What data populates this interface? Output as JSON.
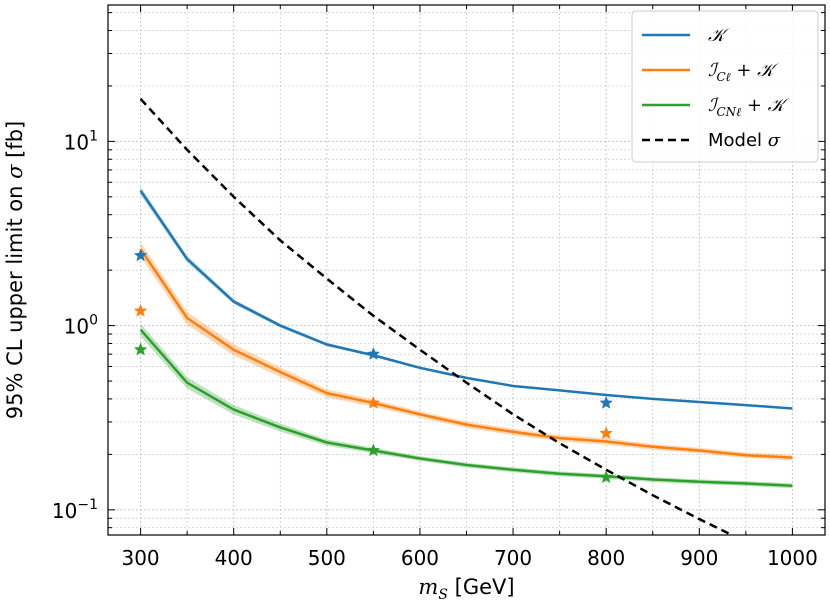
{
  "chart_data": {
    "type": "line",
    "title": "",
    "xlabel": "[GeV]",
    "xlabel_math": "m",
    "xlabel_math_sub": "S",
    "ylabel": "95% CL upper limit on",
    "ylabel_math": "σ",
    "ylabel_unit": "[fb]",
    "xlim": [
      265,
      1035
    ],
    "ylim": [
      0.073,
      55
    ],
    "yscale": "log",
    "grid": true,
    "legend_position": "top-right",
    "x_ticks": [
      300,
      400,
      500,
      600,
      700,
      800,
      900,
      1000
    ],
    "x_tick_labels": [
      "300",
      "400",
      "500",
      "600",
      "700",
      "800",
      "900",
      "1000"
    ],
    "y_ticks": [
      0.1,
      1,
      10
    ],
    "y_tick_labels": [
      {
        "base": "10",
        "exp": "−1"
      },
      {
        "base": "10",
        "exp": "0"
      },
      {
        "base": "10",
        "exp": "1"
      }
    ],
    "x": [
      300,
      350,
      400,
      450,
      500,
      550,
      600,
      650,
      700,
      750,
      800,
      850,
      900,
      950,
      1000
    ],
    "series": [
      {
        "name": "𝒦",
        "color": "#1f77b4",
        "style": "solid",
        "values": [
          5.4,
          2.3,
          1.35,
          1.0,
          0.79,
          0.69,
          0.59,
          0.52,
          0.47,
          0.445,
          0.42,
          0.4,
          0.385,
          0.37,
          0.355
        ],
        "band": [
          0.05,
          0.04,
          0.03,
          0.025,
          0.02,
          0.02,
          0.015,
          0.015,
          0.012,
          0.012,
          0.012,
          0.012,
          0.012,
          0.012,
          0.012
        ],
        "markers": [
          {
            "x": 300,
            "y": 2.4
          },
          {
            "x": 550,
            "y": 0.7
          },
          {
            "x": 800,
            "y": 0.38
          }
        ]
      },
      {
        "name": "ℐ_Cℓ + 𝒦",
        "color": "#ff7f0e",
        "style": "solid",
        "values": [
          2.6,
          1.1,
          0.74,
          0.56,
          0.43,
          0.38,
          0.33,
          0.29,
          0.265,
          0.245,
          0.235,
          0.22,
          0.21,
          0.198,
          0.192
        ],
        "band": [
          0.09,
          0.08,
          0.07,
          0.06,
          0.05,
          0.045,
          0.04,
          0.04,
          0.04,
          0.04,
          0.04,
          0.035,
          0.035,
          0.035,
          0.035
        ],
        "markers": [
          {
            "x": 300,
            "y": 1.2
          },
          {
            "x": 550,
            "y": 0.38
          },
          {
            "x": 800,
            "y": 0.26
          }
        ]
      },
      {
        "name": "ℐ_CNℓ + 𝒦",
        "color": "#2ca02c",
        "style": "solid",
        "values": [
          0.95,
          0.49,
          0.35,
          0.28,
          0.232,
          0.21,
          0.19,
          0.175,
          0.165,
          0.157,
          0.152,
          0.146,
          0.142,
          0.139,
          0.135
        ],
        "band": [
          0.08,
          0.07,
          0.06,
          0.05,
          0.04,
          0.035,
          0.03,
          0.03,
          0.03,
          0.03,
          0.03,
          0.03,
          0.03,
          0.03,
          0.03
        ],
        "markers": [
          {
            "x": 300,
            "y": 0.74
          },
          {
            "x": 550,
            "y": 0.21
          },
          {
            "x": 800,
            "y": 0.15
          }
        ]
      },
      {
        "name": "Model σ",
        "color": "#000000",
        "style": "dashed",
        "x": [
          300,
          350,
          400,
          450,
          500,
          550,
          600,
          650,
          700,
          750,
          800,
          850,
          900,
          935
        ],
        "values": [
          17.0,
          9.0,
          5.0,
          2.9,
          1.8,
          1.13,
          0.74,
          0.49,
          0.33,
          0.23,
          0.165,
          0.12,
          0.089,
          0.073
        ],
        "band": [],
        "markers": []
      }
    ],
    "legend": [
      {
        "label_math": "𝒦",
        "label_sub": "",
        "label_rest": "",
        "color": "#1f77b4",
        "style": "solid"
      },
      {
        "label_math": "ℐ",
        "label_sub": "Cℓ",
        "label_rest": " + 𝒦",
        "color": "#ff7f0e",
        "style": "solid"
      },
      {
        "label_math": "ℐ",
        "label_sub": "CNℓ",
        "label_rest": " + 𝒦",
        "color": "#2ca02c",
        "style": "solid"
      },
      {
        "label_math": "Model ",
        "label_sub": "",
        "label_rest": "σ",
        "color": "#000000",
        "style": "dashed"
      }
    ]
  }
}
